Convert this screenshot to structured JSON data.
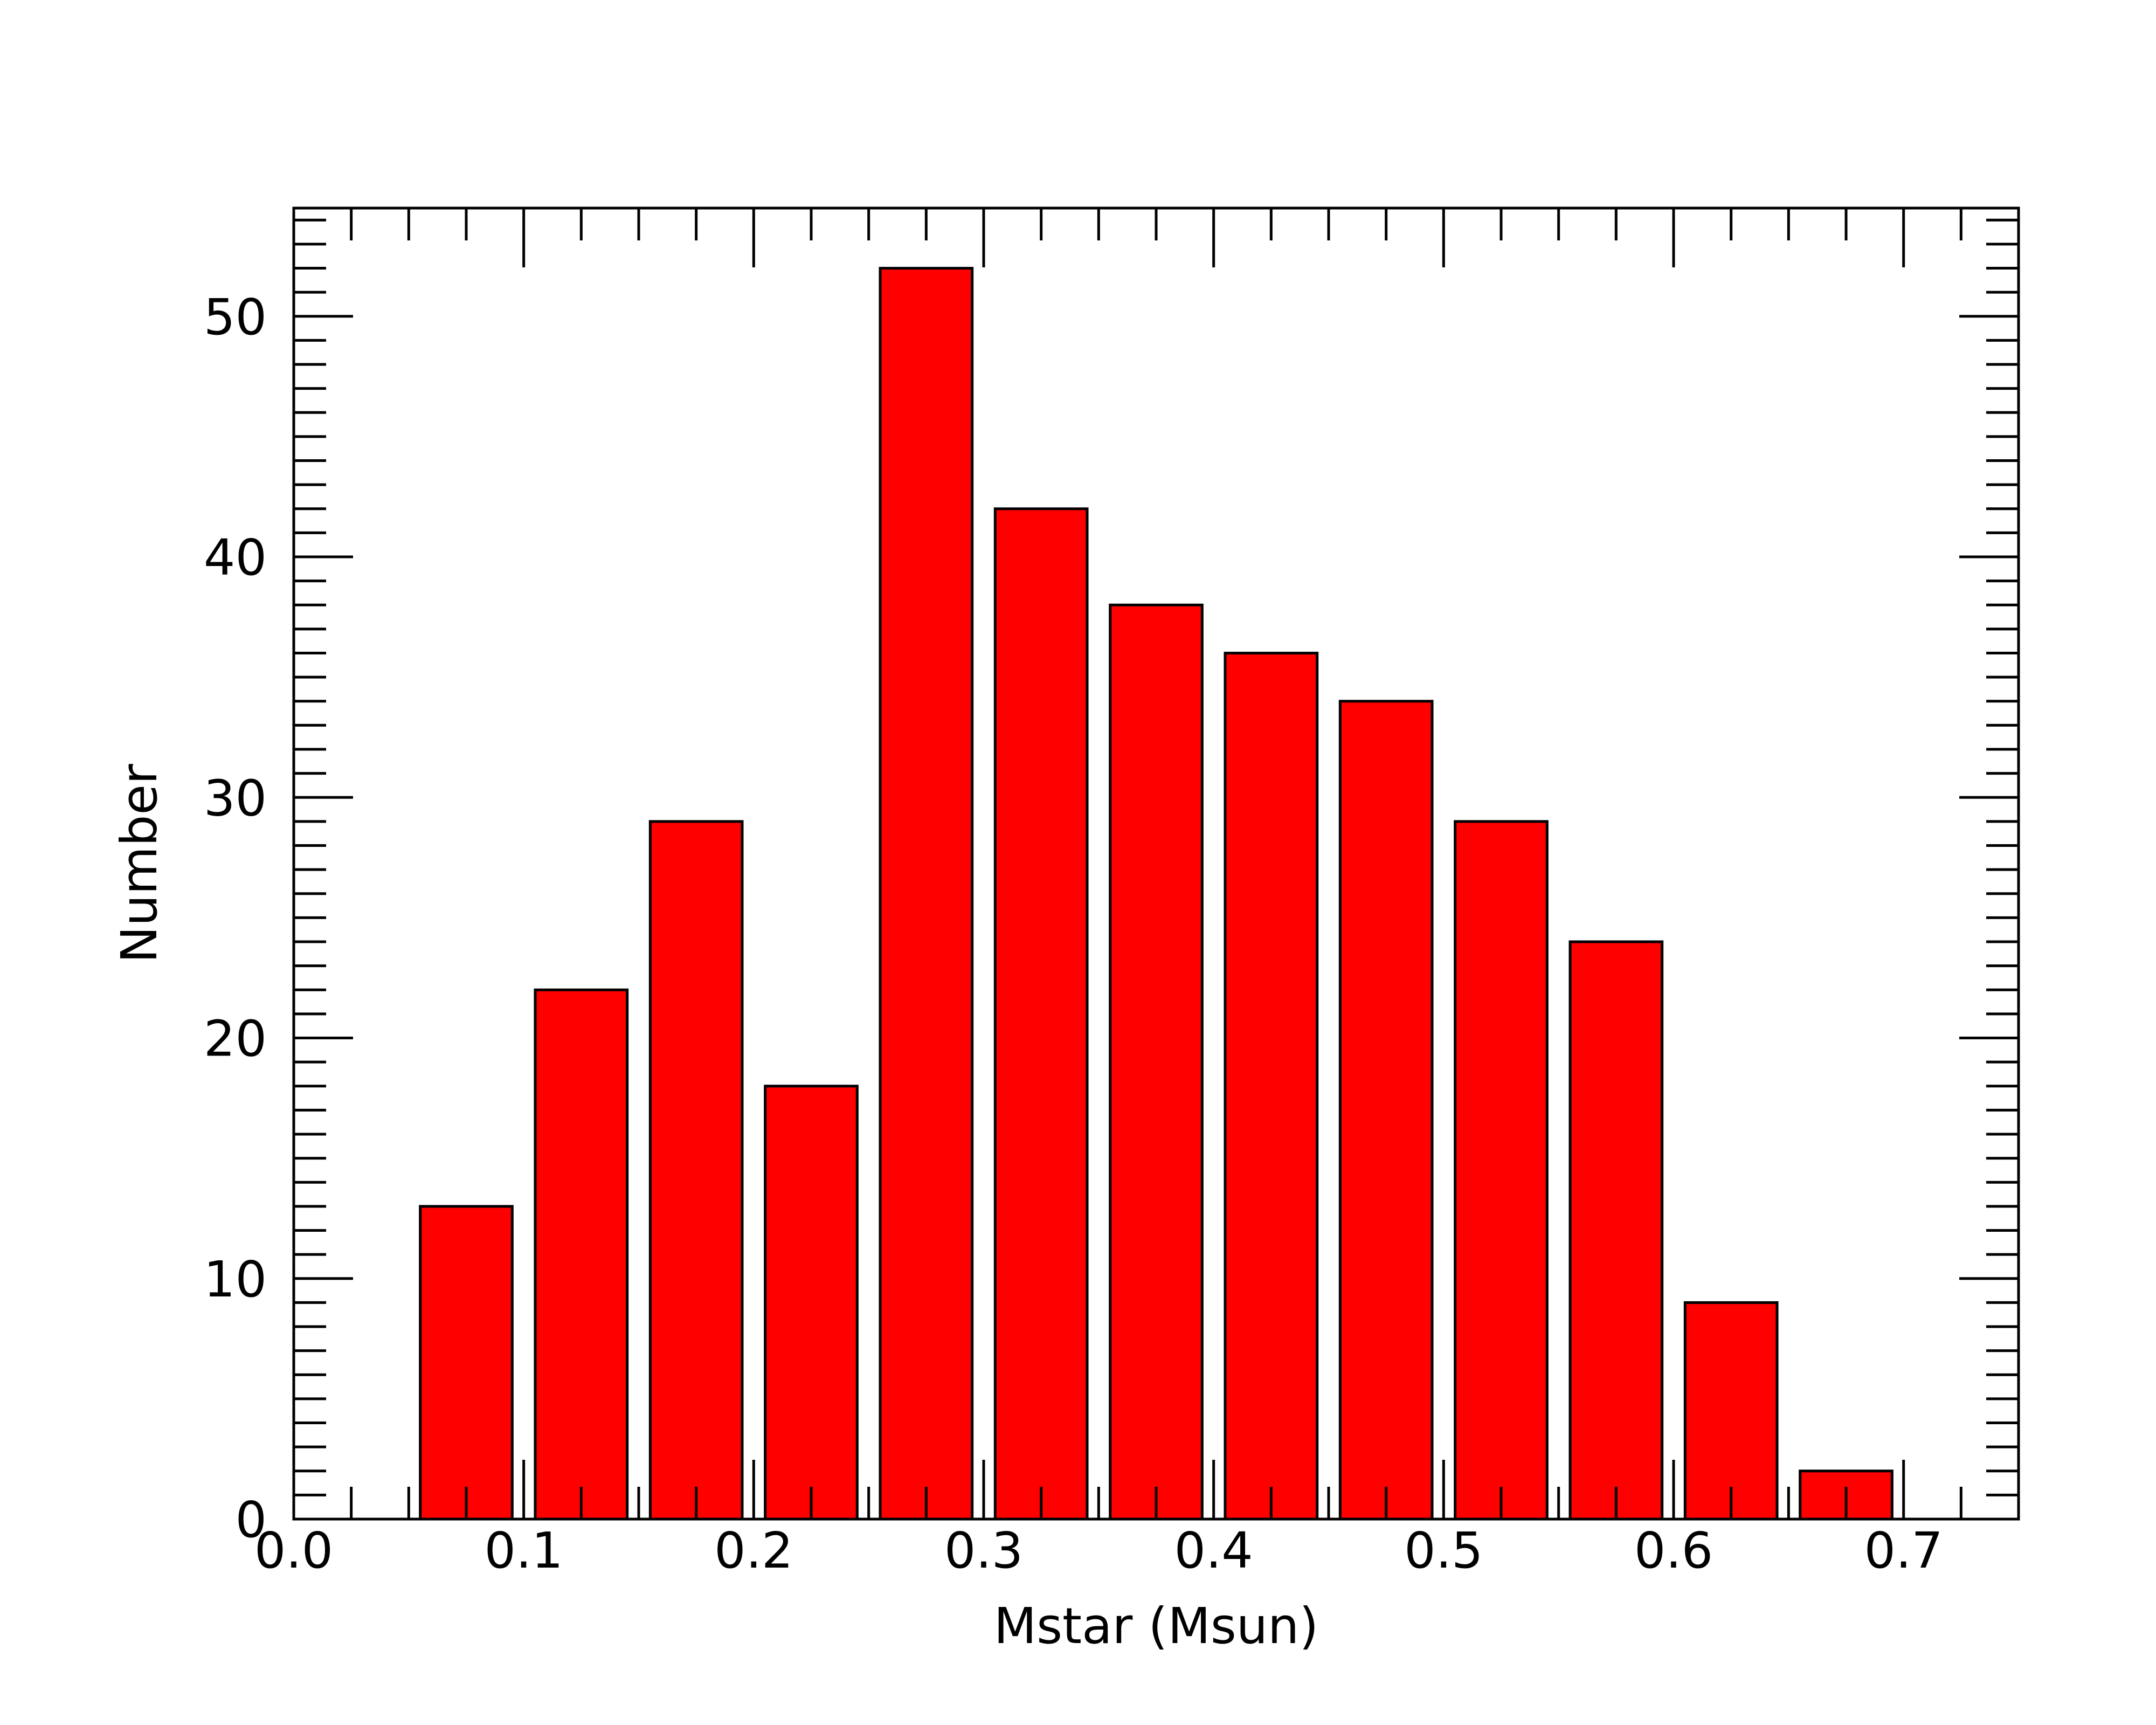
{
  "chart_data": {
    "type": "bar",
    "title": "",
    "xlabel": "Mstar (Msun)",
    "ylabel": "Number",
    "xlim": [
      0.0,
      0.75
    ],
    "ylim": [
      0,
      54.5
    ],
    "x_ticks": [
      "0.0",
      "0.1",
      "0.2",
      "0.3",
      "0.4",
      "0.5",
      "0.6",
      "0.7"
    ],
    "y_ticks": [
      "0",
      "10",
      "20",
      "30",
      "40",
      "50"
    ],
    "bins": [
      {
        "left": 0.055,
        "right": 0.095,
        "value": 13
      },
      {
        "left": 0.105,
        "right": 0.145,
        "value": 22
      },
      {
        "left": 0.155,
        "right": 0.195,
        "value": 29
      },
      {
        "left": 0.205,
        "right": 0.245,
        "value": 18
      },
      {
        "left": 0.255,
        "right": 0.295,
        "value": 52
      },
      {
        "left": 0.305,
        "right": 0.345,
        "value": 42
      },
      {
        "left": 0.355,
        "right": 0.395,
        "value": 38
      },
      {
        "left": 0.405,
        "right": 0.445,
        "value": 36
      },
      {
        "left": 0.455,
        "right": 0.495,
        "value": 34
      },
      {
        "left": 0.505,
        "right": 0.545,
        "value": 29
      },
      {
        "left": 0.555,
        "right": 0.595,
        "value": 24
      },
      {
        "left": 0.605,
        "right": 0.645,
        "value": 9
      },
      {
        "left": 0.655,
        "right": 0.695,
        "value": 2
      }
    ],
    "grid": false,
    "colors": {
      "bar_fill": "#ff0000",
      "bar_edge": "#000000",
      "axis": "#000000"
    }
  }
}
